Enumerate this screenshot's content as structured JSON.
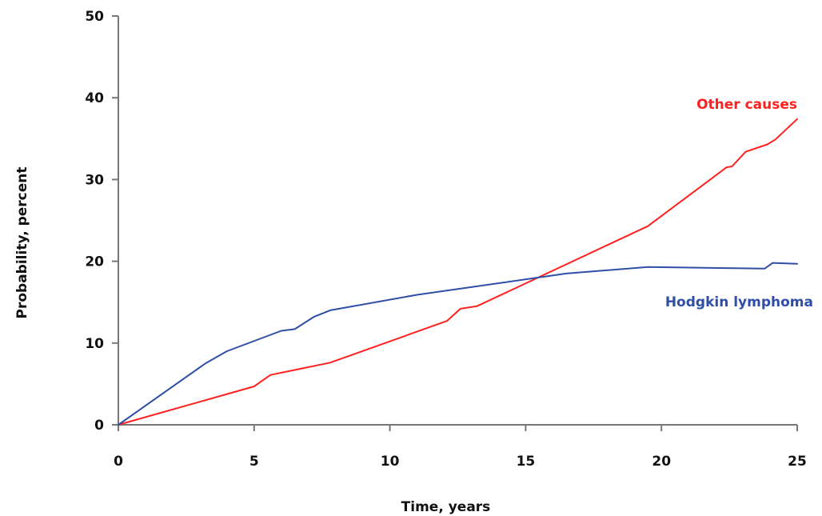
{
  "chart_data": {
    "type": "line",
    "title": "",
    "xlabel": "Time, years",
    "ylabel": "Probability, percent",
    "xlim": [
      0,
      25
    ],
    "ylim": [
      0,
      50
    ],
    "xticks": [
      "0",
      "5",
      "10",
      "15",
      "20",
      "25"
    ],
    "yticks": [
      "0",
      "10",
      "20",
      "30",
      "40",
      "50"
    ],
    "grid": false,
    "legend": "inline labels",
    "series": [
      {
        "name": "Other causes",
        "color": "#ff2020",
        "x": [
          0,
          5,
          5.6,
          7.8,
          12.1,
          12.6,
          13.2,
          19.5,
          22.4,
          22.6,
          23.1,
          23.9,
          24.2,
          25
        ],
        "y": [
          0,
          4.7,
          6.1,
          7.6,
          12.7,
          14.2,
          14.5,
          24.3,
          31.5,
          31.6,
          33.4,
          34.3,
          34.9,
          37.4
        ]
      },
      {
        "name": "Hodgkin lymphoma",
        "color": "#2e4ea8",
        "x": [
          0,
          3.2,
          4.0,
          6.0,
          6.5,
          7.2,
          7.8,
          11.0,
          16.5,
          19.5,
          23.8,
          24.1,
          25
        ],
        "y": [
          0,
          7.5,
          9.0,
          11.5,
          11.7,
          13.2,
          14.0,
          15.9,
          18.5,
          19.3,
          19.1,
          19.8,
          19.7
        ]
      }
    ]
  }
}
